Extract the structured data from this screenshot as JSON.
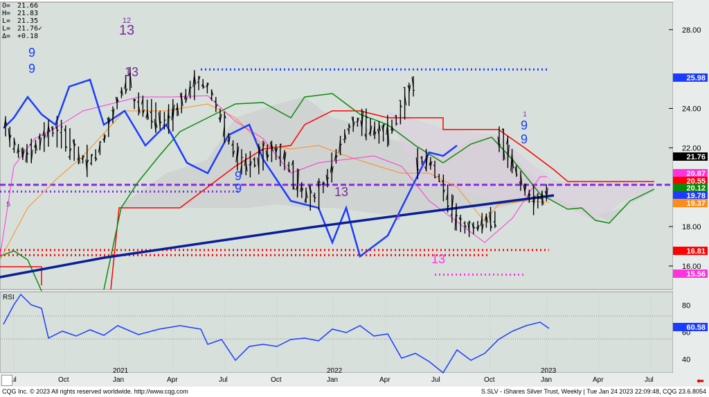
{
  "info": {
    "open": "21.66",
    "high": "21.83",
    "low": "21.35",
    "last": "21.76",
    "last_mark": "✓",
    "change": "+0.18",
    "labels": [
      "O=",
      "H=",
      "L=",
      "L=",
      "Δ="
    ]
  },
  "footer": {
    "left": "CQG Inc. © 2023 All rights reserved worldwide. http://www.cqg.com",
    "right": "S.SLV - iShares Silver Trust, Weekly | Tue Jan 24 2023 22:09:48, CQG 23.6.8054"
  },
  "colors": {
    "bg": "#d8e0dc",
    "bar": "#000000",
    "blue": "#1a3cff",
    "navy": "#0a1e96",
    "red": "#ff0000",
    "green": "#0a8a0a",
    "pink": "#ff33dd",
    "orange": "#ff8c1a",
    "purple": "#7a2a9a",
    "cloud": "#c8c8c8",
    "cloudPink": "#dccfdc"
  },
  "chart_data": [
    {
      "type": "line",
      "title": "",
      "ylim": [
        14.8,
        29.4
      ],
      "yticks": [
        "28.00",
        "24.00",
        "22.00",
        "18.00",
        "16.00"
      ],
      "x_labels": [
        "Jul",
        "Oct",
        "2021",
        "Jan",
        "Apr",
        "Jul",
        "Oct",
        "2022",
        "Jan",
        "Apr",
        "Jul",
        "Oct",
        "2023",
        "Jan",
        "Apr",
        "Jul"
      ],
      "price_tags": [
        {
          "value": "25.98",
          "color": "#1a3cff"
        },
        {
          "value": "21.76",
          "color": "#000000"
        },
        {
          "value": "20.87",
          "color": "#ff33dd"
        },
        {
          "value": "20.55",
          "color": "#ff0000"
        },
        {
          "value": "20.12",
          "color": "#0a8a0a"
        },
        {
          "value": "19.78",
          "color": "#1a3cff"
        },
        {
          "value": "19.37",
          "color": "#ff8c1a"
        },
        {
          "value": "16.81",
          "color": "#ff0000"
        },
        {
          "value": "15.56",
          "color": "#ff33dd"
        }
      ],
      "levels": [
        {
          "name": "",
          "value": 25.98,
          "color": "#1a3cff",
          "style": "dotted"
        },
        {
          "name": "",
          "value": 20.12,
          "color": "#8a2be2",
          "style": "dashed"
        },
        {
          "name": "",
          "value": 19.78,
          "color": "#8a2be2",
          "style": "dotted"
        },
        {
          "name": "",
          "value": 16.81,
          "color": "#ff0000",
          "style": "dotted"
        },
        {
          "name": "",
          "value": 15.56,
          "color": "#ff33dd",
          "style": "dotted"
        }
      ],
      "counts": [
        {
          "text": "13",
          "color": "#7a2a9a",
          "size": 20,
          "x": 183,
          "y": 50
        },
        {
          "text": "12",
          "color": "#7a2a9a",
          "size": 11,
          "x": 183,
          "y": 33
        },
        {
          "text": "13",
          "color": "#7a2a9a",
          "size": 18,
          "x": 190,
          "y": 110
        },
        {
          "text": "13",
          "color": "#7a2a9a",
          "size": 18,
          "x": 493,
          "y": 283
        },
        {
          "text": "13",
          "color": "#ff33dd",
          "size": 18,
          "x": 633,
          "y": 380
        },
        {
          "text": "9",
          "color": "#1a3cff",
          "size": 18,
          "x": 46,
          "y": 82
        },
        {
          "text": "9",
          "color": "#1a3cff",
          "size": 18,
          "x": 46,
          "y": 105
        },
        {
          "text": "9",
          "color": "#1a3cff",
          "size": 18,
          "x": 344,
          "y": 260
        },
        {
          "text": "9",
          "color": "#1a3cff",
          "size": 18,
          "x": 344,
          "y": 278
        },
        {
          "text": "9",
          "color": "#1a3cff",
          "size": 18,
          "x": 757,
          "y": 187
        },
        {
          "text": "9",
          "color": "#1a3cff",
          "size": 18,
          "x": 757,
          "y": 207
        },
        {
          "text": "1",
          "color": "#7a2a9a",
          "size": 10,
          "x": 758,
          "y": 168
        },
        {
          "text": "5",
          "color": "#7a2a9a",
          "size": 10,
          "x": 12,
          "y": 298
        },
        {
          "text": "9",
          "color": "#ff33dd",
          "size": 10,
          "x": 575,
          "y": 317
        }
      ],
      "series": []
    },
    {
      "type": "line",
      "title": "RSI",
      "ylim": [
        30,
        90
      ],
      "yticks": [
        "80",
        "60",
        "40"
      ],
      "price_tags": [
        {
          "value": "60.58",
          "color": "#1a3cff"
        }
      ],
      "levels": [
        72,
        55
      ]
    }
  ]
}
